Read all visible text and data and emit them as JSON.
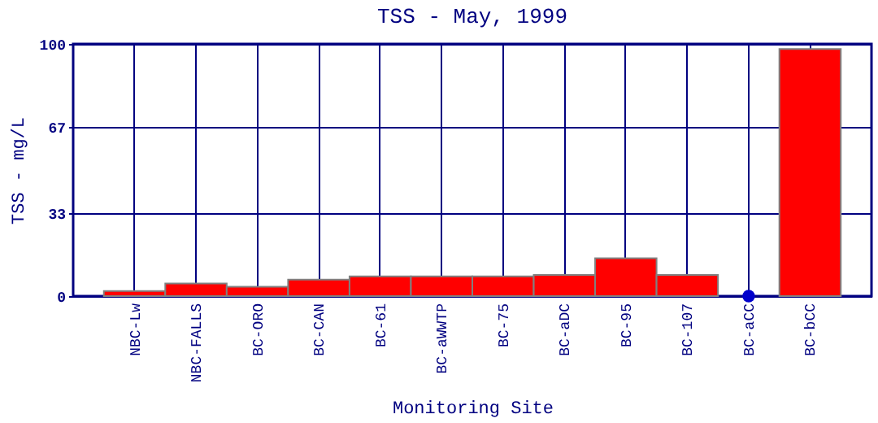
{
  "chart_data": {
    "type": "bar",
    "title": "TSS - May, 1999",
    "xlabel": "Monitoring Site",
    "ylabel": "TSS - mg/L",
    "categories": [
      "NBC-Lw",
      "NBC-FALLS",
      "BC-ORO",
      "BC-CAN",
      "BC-61",
      "BC-aWWTP",
      "BC-75",
      "BC-aDC",
      "BC-95",
      "BC-107",
      "BC-aCC",
      "BC-bCC"
    ],
    "series": [
      {
        "type": "bar",
        "color": "#ff0000",
        "values": [
          2,
          5,
          3.7,
          6.5,
          7.8,
          7.8,
          7.8,
          8.4,
          15,
          8.4,
          0,
          98
        ]
      },
      {
        "type": "scatter",
        "color": "#0000cc",
        "x": [
          "BC-aCC"
        ],
        "values": [
          0
        ],
        "marker": "circle"
      }
    ],
    "ylim": [
      0,
      100
    ],
    "yticks": [
      0,
      33,
      67,
      100
    ],
    "grid": true
  }
}
